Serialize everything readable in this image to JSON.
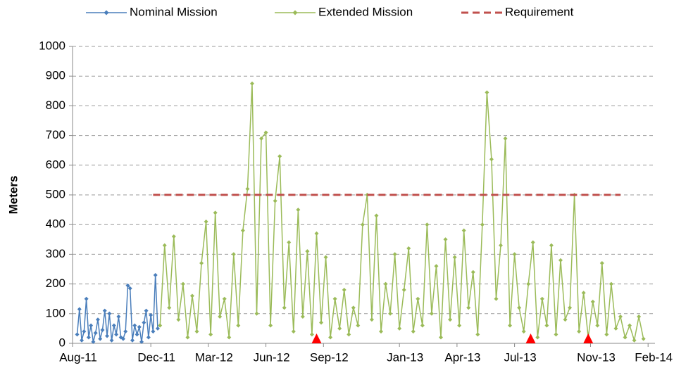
{
  "chart_data": {
    "type": "line",
    "y_label": "Meters",
    "xlim": [
      2011.58,
      2014.11
    ],
    "xticks": [
      {
        "value": 2011.58,
        "label": "Aug-11"
      },
      {
        "value": 2011.92,
        "label": "Dec-11"
      },
      {
        "value": 2012.17,
        "label": "Mar-12"
      },
      {
        "value": 2012.42,
        "label": "Jun-12"
      },
      {
        "value": 2012.67,
        "label": "Sep-12"
      },
      {
        "value": 2013.0,
        "label": "Jan-13"
      },
      {
        "value": 2013.25,
        "label": "Apr-13"
      },
      {
        "value": 2013.5,
        "label": "Jul-13"
      },
      {
        "value": 2013.83,
        "label": "Nov-13"
      },
      {
        "value": 2014.08,
        "label": "Feb-14"
      }
    ],
    "ylim": [
      0,
      1000
    ],
    "yticks": [
      0,
      100,
      200,
      300,
      400,
      500,
      600,
      700,
      800,
      900,
      1000
    ],
    "grid": true,
    "legend": "top",
    "series": [
      {
        "name": "Nominal Mission",
        "color": "#4a7ebb",
        "marker": "diamond",
        "x": [
          2011.6,
          2011.61,
          2011.62,
          2011.63,
          2011.64,
          2011.65,
          2011.66,
          2011.67,
          2011.68,
          2011.69,
          2011.7,
          2011.71,
          2011.72,
          2011.73,
          2011.74,
          2011.75,
          2011.76,
          2011.77,
          2011.78,
          2011.79,
          2011.8,
          2011.81,
          2011.82,
          2011.83,
          2011.84,
          2011.85,
          2011.86,
          2011.87,
          2011.88,
          2011.89,
          2011.9,
          2011.91,
          2011.92,
          2011.93,
          2011.94,
          2011.95
        ],
        "values": [
          30,
          115,
          10,
          40,
          150,
          20,
          60,
          5,
          35,
          80,
          15,
          45,
          110,
          25,
          100,
          10,
          60,
          30,
          90,
          20,
          15,
          40,
          195,
          185,
          10,
          60,
          30,
          55,
          5,
          70,
          110,
          20,
          95,
          40,
          230,
          50
        ]
      },
      {
        "name": "Extended Mission",
        "color": "#9bbb59",
        "marker": "diamond",
        "x": [
          2011.96,
          2011.98,
          2012.0,
          2012.02,
          2012.04,
          2012.06,
          2012.08,
          2012.1,
          2012.12,
          2012.14,
          2012.16,
          2012.18,
          2012.2,
          2012.22,
          2012.24,
          2012.26,
          2012.28,
          2012.3,
          2012.32,
          2012.34,
          2012.36,
          2012.38,
          2012.4,
          2012.42,
          2012.44,
          2012.46,
          2012.48,
          2012.5,
          2012.52,
          2012.54,
          2012.56,
          2012.58,
          2012.6,
          2012.62,
          2012.64,
          2012.66,
          2012.68,
          2012.7,
          2012.72,
          2012.74,
          2012.76,
          2012.78,
          2012.8,
          2012.82,
          2012.84,
          2012.86,
          2012.88,
          2012.9,
          2012.92,
          2012.94,
          2012.96,
          2012.98,
          2013.0,
          2013.02,
          2013.04,
          2013.06,
          2013.08,
          2013.1,
          2013.12,
          2013.14,
          2013.16,
          2013.18,
          2013.2,
          2013.22,
          2013.24,
          2013.26,
          2013.28,
          2013.3,
          2013.32,
          2013.34,
          2013.36,
          2013.38,
          2013.4,
          2013.42,
          2013.44,
          2013.46,
          2013.48,
          2013.5,
          2013.52,
          2013.54,
          2013.56,
          2013.58,
          2013.6,
          2013.62,
          2013.64,
          2013.66,
          2013.68,
          2013.7,
          2013.72,
          2013.74,
          2013.76,
          2013.78,
          2013.8,
          2013.82,
          2013.84,
          2013.86,
          2013.88,
          2013.9,
          2013.92,
          2013.94,
          2013.96,
          2013.98,
          2014.0,
          2014.02,
          2014.04,
          2014.06
        ],
        "values": [
          60,
          330,
          120,
          360,
          80,
          200,
          20,
          160,
          40,
          270,
          410,
          30,
          440,
          90,
          150,
          20,
          300,
          60,
          380,
          520,
          875,
          100,
          690,
          710,
          60,
          480,
          630,
          120,
          340,
          40,
          450,
          90,
          310,
          30,
          370,
          70,
          290,
          20,
          150,
          50,
          180,
          30,
          120,
          60,
          400,
          500,
          80,
          430,
          40,
          200,
          100,
          300,
          50,
          180,
          320,
          40,
          150,
          60,
          400,
          100,
          260,
          20,
          350,
          80,
          290,
          60,
          380,
          120,
          240,
          30,
          400,
          845,
          620,
          150,
          330,
          690,
          60,
          300,
          120,
          40,
          200,
          340,
          20,
          150,
          60,
          330,
          30,
          280,
          80,
          120,
          500,
          40,
          170,
          20,
          140,
          60,
          270,
          30,
          200,
          50,
          90,
          20,
          60,
          10,
          90,
          15
        ]
      },
      {
        "name": "Requirement",
        "color": "#c0504d",
        "dashed": true,
        "x": [
          2011.93,
          2013.96
        ],
        "values": [
          500,
          500
        ]
      }
    ],
    "events": {
      "x": [
        2012.64,
        2013.57,
        2013.82
      ],
      "values": [
        0,
        0,
        0
      ],
      "color": "#ff0000"
    }
  }
}
